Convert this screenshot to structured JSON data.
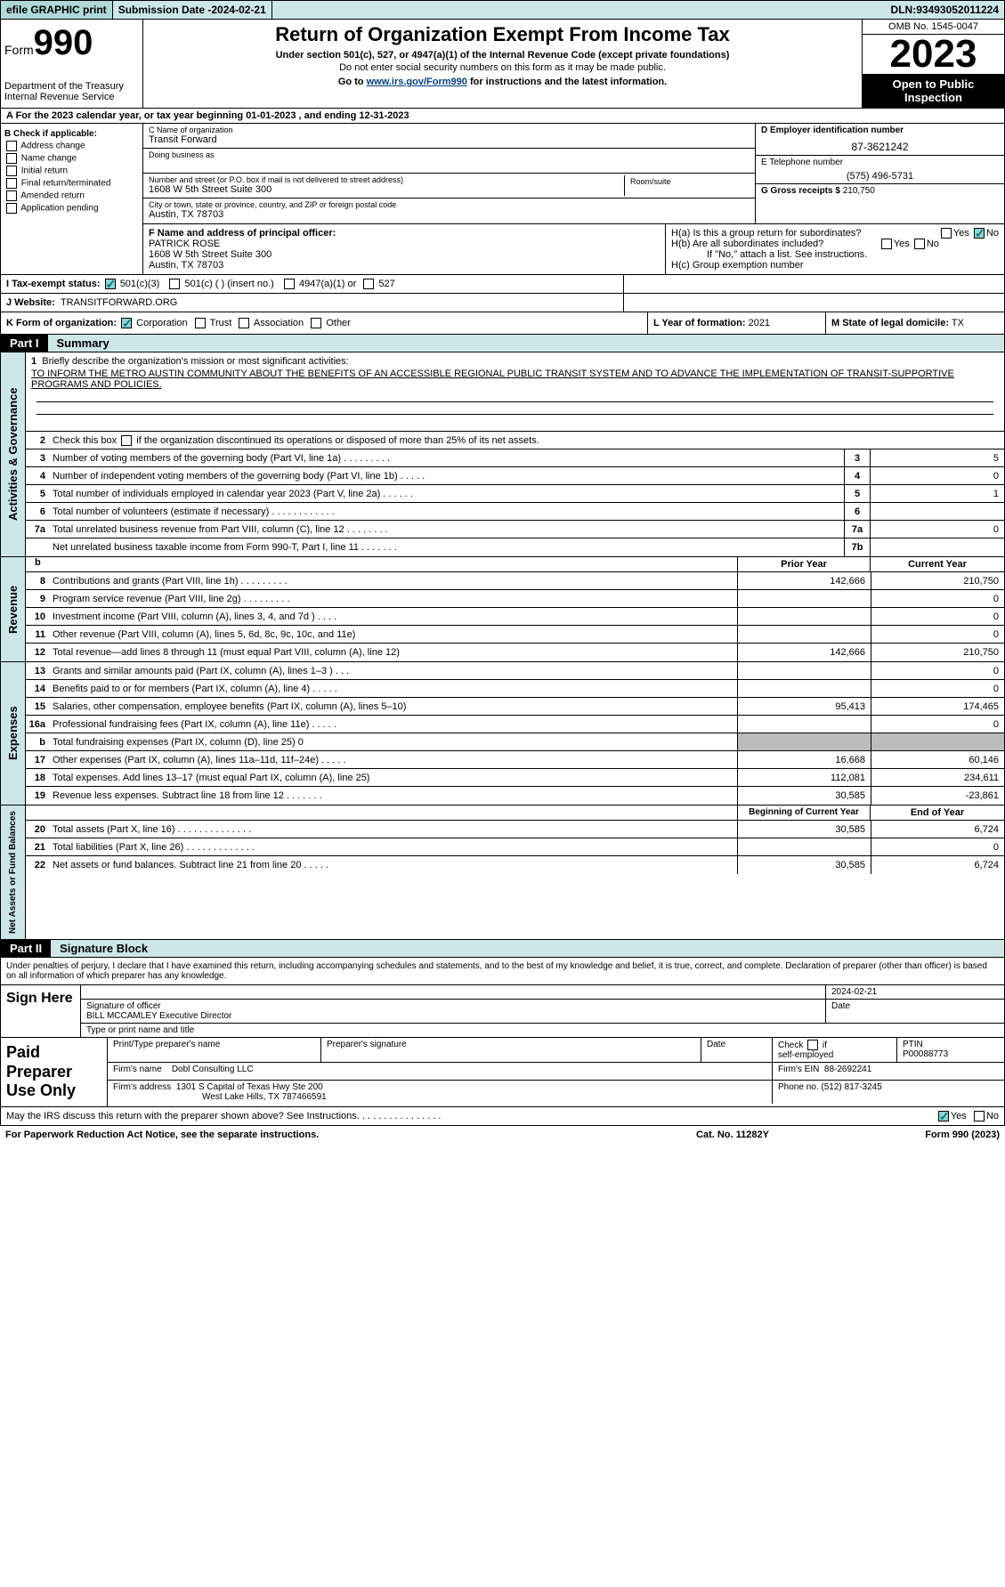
{
  "topbar": {
    "efile": "efile GRAPHIC print",
    "subdate_lbl": "Submission Date - ",
    "subdate": "2024-02-21",
    "dln_lbl": "DLN: ",
    "dln": "93493052011224"
  },
  "header": {
    "form_lbl": "Form",
    "form_num": "990",
    "dept": "Department of the Treasury\nInternal Revenue Service",
    "title": "Return of Organization Exempt From Income Tax",
    "sub1": "Under section 501(c), 527, or 4947(a)(1) of the Internal Revenue Code (except private foundations)",
    "sub2": "Do not enter social security numbers on this form as it may be made public.",
    "sub3_pre": "Go to ",
    "sub3_link": "www.irs.gov/Form990",
    "sub3_post": " for instructions and the latest information.",
    "omb": "OMB No. 1545-0047",
    "year": "2023",
    "open": "Open to Public Inspection"
  },
  "row_a": "A  For the 2023 calendar year, or tax year beginning 01-01-2023    , and ending 12-31-2023",
  "box_b": {
    "title": "B Check if applicable:",
    "items": [
      "Address change",
      "Name change",
      "Initial return",
      "Final return/terminated",
      "Amended return",
      "Application pending"
    ]
  },
  "box_c": {
    "name_lbl": "C Name of organization",
    "name": "Transit Forward",
    "dba_lbl": "Doing business as",
    "street_lbl": "Number and street (or P.O. box if mail is not delivered to street address)",
    "street": "1608 W 5th Street Suite 300",
    "room_lbl": "Room/suite",
    "city_lbl": "City or town, state or province, country, and ZIP or foreign postal code",
    "city": "Austin, TX  78703"
  },
  "box_de": {
    "d_lbl": "D Employer identification number",
    "d_val": "87-3621242",
    "e_lbl": "E Telephone number",
    "e_val": "(575) 496-5731",
    "g_lbl": "G Gross receipts $",
    "g_val": "210,750"
  },
  "box_f": {
    "lbl": "F  Name and address of principal officer:",
    "name": "PATRICK ROSE",
    "addr1": "1608 W 5th Street Suite 300",
    "addr2": "Austin, TX  78703"
  },
  "box_h": {
    "ha": "H(a)  Is this a group return for subordinates?",
    "hb": "H(b)  Are all subordinates included?",
    "hb_note": "If \"No,\" attach a list. See instructions.",
    "hc": "H(c)  Group exemption number"
  },
  "row_i": {
    "lbl": "I   Tax-exempt status:",
    "o1": "501(c)(3)",
    "o2": "501(c) (  ) (insert no.)",
    "o3": "4947(a)(1) or",
    "o4": "527"
  },
  "row_j": {
    "lbl": "J   Website:",
    "val": "TRANSITFORWARD.ORG"
  },
  "row_k": "K Form of organization:",
  "row_k_opts": [
    "Corporation",
    "Trust",
    "Association",
    "Other"
  ],
  "row_l": {
    "lbl": "L Year of formation:",
    "val": "2021"
  },
  "row_m": {
    "lbl": "M State of legal domicile:",
    "val": "TX"
  },
  "part1": {
    "hdr_lbl": "Part I",
    "hdr_ttl": "Summary",
    "side1": "Activities & Governance",
    "side2": "Revenue",
    "side3": "Expenses",
    "side4": "Net Assets or Fund Balances",
    "line1_lbl": "Briefly describe the organization's mission or most significant activities:",
    "line1_val": "TO INFORM THE METRO AUSTIN COMMUNITY ABOUT THE BENEFITS OF AN ACCESSIBLE REGIONAL PUBLIC TRANSIT SYSTEM AND TO ADVANCE THE IMPLEMENTATION OF TRANSIT-SUPPORTIVE PROGRAMS AND POLICIES.",
    "line2": "Check this box     if the organization discontinued its operations or disposed of more than 25% of its net assets.",
    "rows_a": [
      {
        "n": "3",
        "t": "Number of voting members of the governing body (Part VI, line 1a)  .   .   .   .   .   .   .   .   .",
        "nb": "3",
        "v": "5"
      },
      {
        "n": "4",
        "t": "Number of independent voting members of the governing body (Part VI, line 1b)  .   .   .   .   .",
        "nb": "4",
        "v": "0"
      },
      {
        "n": "5",
        "t": "Total number of individuals employed in calendar year 2023 (Part V, line 2a)  .   .   .   .   .   .",
        "nb": "5",
        "v": "1"
      },
      {
        "n": "6",
        "t": "Total number of volunteers (estimate if necessary)   .   .   .   .   .   .   .   .   .   .   .   .",
        "nb": "6",
        "v": ""
      },
      {
        "n": "7a",
        "t": "Total unrelated business revenue from Part VIII, column (C), line 12  .   .   .   .   .   .   .   .",
        "nb": "7a",
        "v": "0"
      },
      {
        "n": "",
        "t": "Net unrelated business taxable income from Form 990-T, Part I, line 11  .   .   .   .   .   .   .",
        "nb": "7b",
        "v": ""
      }
    ],
    "yearhdr": {
      "c1": "Prior Year",
      "c2": "Current Year"
    },
    "rows_rev": [
      {
        "n": "8",
        "t": "Contributions and grants (Part VIII, line 1h)   .   .   .   .   .   .   .   .   .",
        "v1": "142,666",
        "v2": "210,750"
      },
      {
        "n": "9",
        "t": "Program service revenue (Part VIII, line 2g)   .   .   .   .   .   .   .   .   .",
        "v1": "",
        "v2": "0"
      },
      {
        "n": "10",
        "t": "Investment income (Part VIII, column (A), lines 3, 4, and 7d )   .   .   .   .",
        "v1": "",
        "v2": "0"
      },
      {
        "n": "11",
        "t": "Other revenue (Part VIII, column (A), lines 5, 6d, 8c, 9c, 10c, and 11e)",
        "v1": "",
        "v2": "0"
      },
      {
        "n": "12",
        "t": "Total revenue—add lines 8 through 11 (must equal Part VIII, column (A), line 12)",
        "v1": "142,666",
        "v2": "210,750"
      }
    ],
    "rows_exp": [
      {
        "n": "13",
        "t": "Grants and similar amounts paid (Part IX, column (A), lines 1–3 )  .   .   .",
        "v1": "",
        "v2": "0"
      },
      {
        "n": "14",
        "t": "Benefits paid to or for members (Part IX, column (A), line 4)  .   .   .   .   .",
        "v1": "",
        "v2": "0"
      },
      {
        "n": "15",
        "t": "Salaries, other compensation, employee benefits (Part IX, column (A), lines 5–10)",
        "v1": "95,413",
        "v2": "174,465"
      },
      {
        "n": "16a",
        "t": "Professional fundraising fees (Part IX, column (A), line 11e)  .   .   .   .   .",
        "v1": "",
        "v2": "0"
      },
      {
        "n": "b",
        "t": "Total fundraising expenses (Part IX, column (D), line 25) 0",
        "v1": "grey",
        "v2": "grey"
      },
      {
        "n": "17",
        "t": "Other expenses (Part IX, column (A), lines 11a–11d, 11f–24e)  .   .   .   .   .",
        "v1": "16,668",
        "v2": "60,146"
      },
      {
        "n": "18",
        "t": "Total expenses. Add lines 13–17 (must equal Part IX, column (A), line 25)",
        "v1": "112,081",
        "v2": "234,611"
      },
      {
        "n": "19",
        "t": "Revenue less expenses. Subtract line 18 from line 12  .   .   .   .   .   .   .",
        "v1": "30,585",
        "v2": "-23,861"
      }
    ],
    "yearhdr2": {
      "c1": "Beginning of Current Year",
      "c2": "End of Year"
    },
    "rows_net": [
      {
        "n": "20",
        "t": "Total assets (Part X, line 16)  .   .   .   .   .   .   .   .   .   .   .   .   .   .",
        "v1": "30,585",
        "v2": "6,724"
      },
      {
        "n": "21",
        "t": "Total liabilities (Part X, line 26)  .   .   .   .   .   .   .   .   .   .   .   .   .",
        "v1": "",
        "v2": "0"
      },
      {
        "n": "22",
        "t": "Net assets or fund balances. Subtract line 21 from line 20  .   .   .   .   .",
        "v1": "30,585",
        "v2": "6,724"
      }
    ]
  },
  "part2": {
    "hdr_lbl": "Part II",
    "hdr_ttl": "Signature Block",
    "intro": "Under penalties of perjury, I declare that I have examined this return, including accompanying schedules and statements, and to the best of my knowledge and belief, it is true, correct, and complete. Declaration of preparer (other than officer) is based on all information of which preparer has any knowledge.",
    "sign_here": "Sign Here",
    "sig_date": "2024-02-21",
    "sig_of_officer": "Signature of officer",
    "officer": "BILL MCCAMLEY  Executive Director",
    "type_name": "Type or print name and title",
    "date_lbl": "Date",
    "paid": "Paid Preparer Use Only",
    "prep_name_lbl": "Print/Type preparer's name",
    "prep_sig_lbl": "Preparer's signature",
    "check_lbl": "Check        if self-employed",
    "ptin_lbl": "PTIN",
    "ptin": "P00088773",
    "firm_name_lbl": "Firm's name",
    "firm_name": "Dobl Consulting LLC",
    "firm_ein_lbl": "Firm's EIN",
    "firm_ein": "88-2692241",
    "firm_addr_lbl": "Firm's address",
    "firm_addr1": "1301 S Capital of Texas Hwy Ste 200",
    "firm_addr2": "West Lake Hills, TX  787466591",
    "phone_lbl": "Phone no.",
    "phone": "(512) 817-3245",
    "discuss": "May the IRS discuss this return with the preparer shown above? See Instructions.   .   .   .   .   .   .   .   .   .   .   .   .   .   .   .",
    "yes": "Yes",
    "no": "No"
  },
  "footer": {
    "l": "For Paperwork Reduction Act Notice, see the separate instructions.",
    "c": "Cat. No. 11282Y",
    "r": "Form 990 (2023)"
  }
}
